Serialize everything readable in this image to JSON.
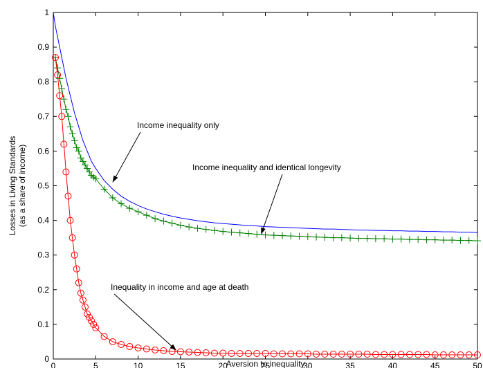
{
  "chart_data": {
    "type": "line",
    "xlabel": "Aversion to inequality",
    "ylabel": [
      "Losses in Living Standards",
      "(as a share of income)"
    ],
    "x": [
      0,
      0.25,
      0.5,
      0.75,
      1,
      1.25,
      1.5,
      1.75,
      2,
      2.25,
      2.5,
      2.75,
      3,
      3.25,
      3.5,
      3.75,
      4,
      4.25,
      4.5,
      4.75,
      5,
      6,
      7,
      8,
      9,
      10,
      11,
      12,
      13,
      14,
      15,
      16,
      17,
      18,
      19,
      20,
      21,
      22,
      23,
      24,
      25,
      26,
      27,
      28,
      29,
      30,
      31,
      32,
      33,
      34,
      35,
      36,
      37,
      38,
      39,
      40,
      41,
      42,
      43,
      44,
      45,
      46,
      47,
      48,
      49,
      50
    ],
    "series": [
      {
        "name": "Income inequality only",
        "color": "#0000ff",
        "marker": "none",
        "values": [
          1,
          0.96,
          0.93,
          0.9,
          0.87,
          0.84,
          0.81,
          0.785,
          0.76,
          0.735,
          0.71,
          0.69,
          0.67,
          0.65,
          0.63,
          0.615,
          0.6,
          0.585,
          0.57,
          0.56,
          0.55,
          0.515,
          0.49,
          0.47,
          0.455,
          0.443,
          0.433,
          0.425,
          0.418,
          0.412,
          0.407,
          0.403,
          0.399,
          0.396,
          0.393,
          0.391,
          0.389,
          0.387,
          0.385,
          0.384,
          0.382,
          0.381,
          0.38,
          0.379,
          0.378,
          0.377,
          0.376,
          0.375,
          0.375,
          0.374,
          0.373,
          0.372,
          0.372,
          0.371,
          0.371,
          0.37,
          0.37,
          0.369,
          0.369,
          0.368,
          0.368,
          0.367,
          0.367,
          0.366,
          0.366,
          0.365
        ]
      },
      {
        "name": "Income inequality and identical longevity",
        "color": "#008000",
        "marker": "plus",
        "values": [
          null,
          0.87,
          0.84,
          0.81,
          0.78,
          0.75,
          0.72,
          0.7,
          0.67,
          0.65,
          0.63,
          0.61,
          0.6,
          0.58,
          0.57,
          0.56,
          0.55,
          0.54,
          0.53,
          0.525,
          0.52,
          0.49,
          0.465,
          0.448,
          0.435,
          0.425,
          0.415,
          0.405,
          0.398,
          0.392,
          0.386,
          0.381,
          0.377,
          0.374,
          0.371,
          0.368,
          0.366,
          0.364,
          0.362,
          0.36,
          0.358,
          0.357,
          0.356,
          0.355,
          0.354,
          0.353,
          0.352,
          0.351,
          0.35,
          0.35,
          0.349,
          0.348,
          0.348,
          0.347,
          0.347,
          0.346,
          0.346,
          0.345,
          0.345,
          0.344,
          0.344,
          0.343,
          0.343,
          0.342,
          0.342,
          0.341
        ]
      },
      {
        "name": "Inequality in income and age at death",
        "color": "#ff0000",
        "marker": "circle",
        "values": [
          null,
          0.87,
          0.82,
          0.76,
          0.7,
          0.62,
          0.54,
          0.47,
          0.4,
          0.35,
          0.3,
          0.26,
          0.22,
          0.19,
          0.17,
          0.15,
          0.13,
          0.12,
          0.11,
          0.1,
          0.09,
          0.065,
          0.05,
          0.042,
          0.036,
          0.032,
          0.029,
          0.026,
          0.024,
          0.022,
          0.021,
          0.02,
          0.019,
          0.018,
          0.017,
          0.017,
          0.016,
          0.016,
          0.016,
          0.016,
          0.016,
          0.015,
          0.015,
          0.015,
          0.015,
          0.015,
          0.014,
          0.014,
          0.014,
          0.014,
          0.014,
          0.014,
          0.014,
          0.013,
          0.013,
          0.013,
          0.013,
          0.013,
          0.013,
          0.013,
          0.012,
          0.012,
          0.012,
          0.012,
          0.012,
          0.012
        ]
      }
    ],
    "xlim": [
      0,
      50
    ],
    "xticks": [
      0,
      5,
      10,
      15,
      20,
      25,
      30,
      35,
      40,
      45,
      50
    ],
    "ylim": [
      0,
      1
    ],
    "yticks": [
      0,
      0.1,
      0.2,
      0.3,
      0.4,
      0.5,
      0.6,
      0.7,
      0.8,
      0.9,
      1
    ],
    "grid": false
  }
}
